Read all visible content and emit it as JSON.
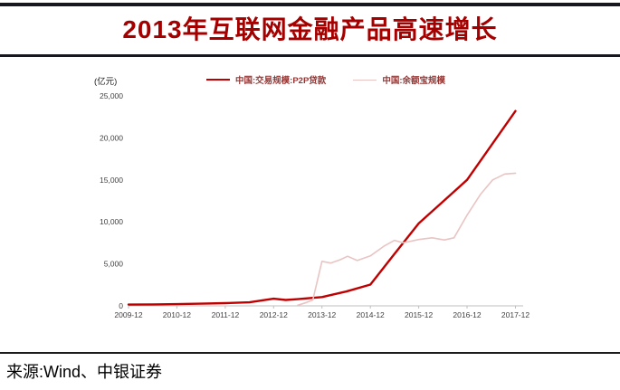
{
  "header": {
    "title": "2013年互联网金融产品高速增长"
  },
  "footer": {
    "source": "来源:Wind、中银证券"
  },
  "colors": {
    "title_red": "#a40000",
    "rule_dark": "#17171f",
    "p2p_red": "#c00000",
    "yuebao_pink": "#e9c4c2",
    "legend_text": "#943634",
    "axis_text": "#3f3f3f",
    "axis_line": "#bfbfbf"
  },
  "chart_data": {
    "type": "line",
    "title": "",
    "unit_label": "(亿元)",
    "xlabel": "",
    "ylabel": "(亿元)",
    "grid": false,
    "legend_position": "top-center",
    "x_range": [
      2009.92,
      2018.08
    ],
    "ylim": [
      0,
      25000
    ],
    "yticks": [
      0,
      5000,
      10000,
      15000,
      20000,
      25000
    ],
    "ytick_labels": [
      "0",
      "5,000",
      "10,000",
      "15,000",
      "20,000",
      "25,000"
    ],
    "xticks": [
      2009.92,
      2010.92,
      2011.92,
      2012.92,
      2013.92,
      2014.92,
      2015.92,
      2016.92,
      2017.92
    ],
    "xtick_labels": [
      "2009-12",
      "2010-12",
      "2011-12",
      "2012-12",
      "2013-12",
      "2014-12",
      "2015-12",
      "2016-12",
      "2017-12"
    ],
    "series": [
      {
        "name": "中国:交易规模:P2P贷款",
        "color": "#c00000",
        "width": 2.4,
        "x": [
          2009.92,
          2010.42,
          2010.92,
          2011.42,
          2011.92,
          2012.42,
          2012.92,
          2013.17,
          2013.42,
          2013.92,
          2014.42,
          2014.92,
          2015.42,
          2015.92,
          2016.42,
          2016.92,
          2017.42,
          2017.92
        ],
        "y": [
          150,
          170,
          200,
          260,
          320,
          420,
          850,
          700,
          800,
          1050,
          1700,
          2530,
          6200,
          9820,
          12400,
          15000,
          19100,
          23200
        ]
      },
      {
        "name": "中国:余额宝规模",
        "color": "#e9c4c2",
        "width": 1.6,
        "x": [
          2013.42,
          2013.6,
          2013.73,
          2013.92,
          2014.1,
          2014.3,
          2014.45,
          2014.65,
          2014.92,
          2015.2,
          2015.42,
          2015.6,
          2015.92,
          2016.2,
          2016.45,
          2016.65,
          2016.92,
          2017.2,
          2017.45,
          2017.7,
          2017.92
        ],
        "y": [
          80,
          400,
          700,
          5300,
          5100,
          5500,
          5900,
          5400,
          5950,
          7100,
          7800,
          7500,
          7900,
          8100,
          7850,
          8100,
          10800,
          13300,
          15000,
          15700,
          15800
        ]
      }
    ]
  }
}
